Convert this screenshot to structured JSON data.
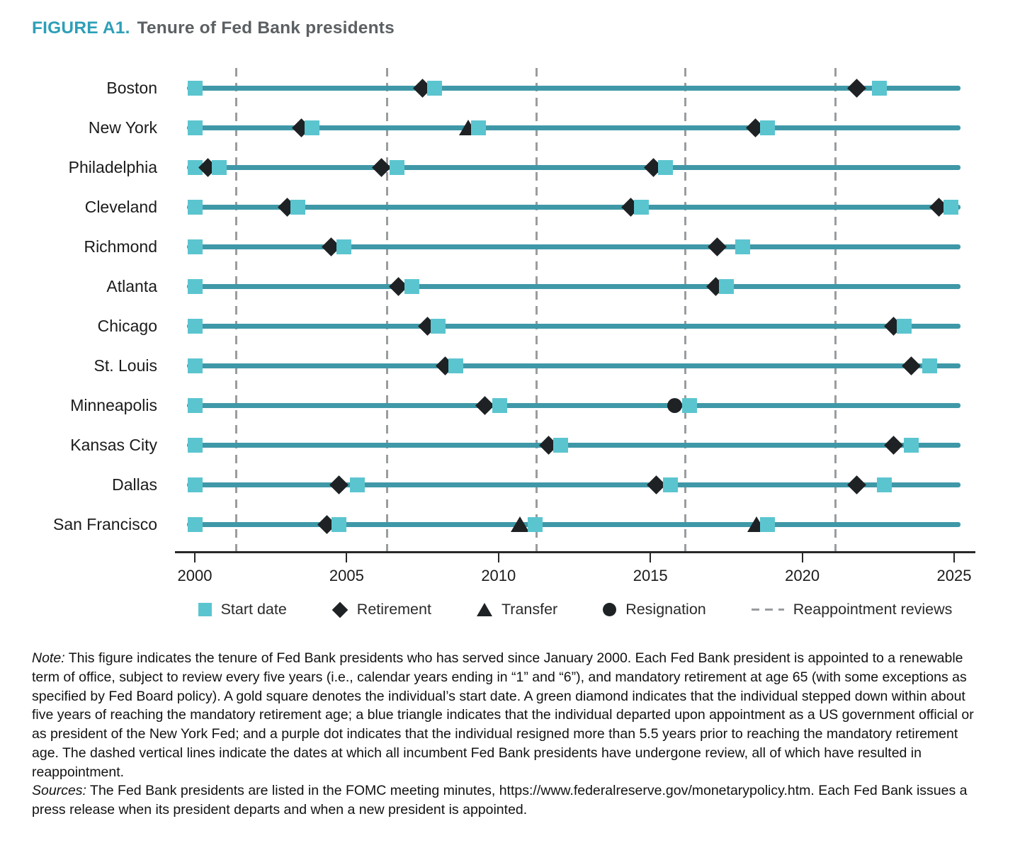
{
  "title": {
    "prefix": "FIGURE A1.",
    "text": "Tenure of Fed Bank presidents"
  },
  "colors": {
    "line": "#3f98a7",
    "marker_square": "#5bc5cf",
    "marker_dark": "#1e2224",
    "review_dash": "#9a9c9e",
    "axis": "#26282a",
    "title_accent": "#2d9fb8",
    "title_gray": "#5c6063"
  },
  "chart_data": {
    "type": "timeline",
    "title": "Tenure of Fed Bank presidents",
    "x_ticks": [
      2000,
      2005,
      2010,
      2015,
      2020,
      2025
    ],
    "x_range": [
      2000,
      2025.2
    ],
    "grid": "dashed-vertical-review-lines",
    "legend_position": "bottom",
    "reappointment_review_years": [
      2001.36,
      2006.33,
      2011.25,
      2016.15,
      2021.1
    ],
    "legend": [
      {
        "marker": "start",
        "label": "Start date"
      },
      {
        "marker": "retirement",
        "label": "Retirement"
      },
      {
        "marker": "transfer",
        "label": "Transfer"
      },
      {
        "marker": "resignation",
        "label": "Resignation"
      },
      {
        "marker": "review",
        "label": "Reappointment reviews"
      }
    ],
    "rows": [
      {
        "label": "Boston",
        "events": [
          {
            "type": "start",
            "year": 2000
          },
          {
            "type": "retirement",
            "year": 2007.5
          },
          {
            "type": "start",
            "year": 2007.9
          },
          {
            "type": "retirement",
            "year": 2021.8
          },
          {
            "type": "start",
            "year": 2022.55
          }
        ]
      },
      {
        "label": "New York",
        "events": [
          {
            "type": "start",
            "year": 2000
          },
          {
            "type": "retirement",
            "year": 2003.5
          },
          {
            "type": "start",
            "year": 2003.85
          },
          {
            "type": "transfer",
            "year": 2009.0
          },
          {
            "type": "start",
            "year": 2009.35
          },
          {
            "type": "retirement",
            "year": 2018.45
          },
          {
            "type": "start",
            "year": 2018.85
          }
        ]
      },
      {
        "label": "Philadelphia",
        "events": [
          {
            "type": "start",
            "year": 2000
          },
          {
            "type": "retirement",
            "year": 2000.42
          },
          {
            "type": "start",
            "year": 2000.8
          },
          {
            "type": "retirement",
            "year": 2006.15
          },
          {
            "type": "start",
            "year": 2006.65
          },
          {
            "type": "retirement",
            "year": 2015.1
          },
          {
            "type": "start",
            "year": 2015.5
          }
        ]
      },
      {
        "label": "Cleveland",
        "events": [
          {
            "type": "start",
            "year": 2000
          },
          {
            "type": "retirement",
            "year": 2003.05
          },
          {
            "type": "start",
            "year": 2003.4
          },
          {
            "type": "retirement",
            "year": 2014.35
          },
          {
            "type": "start",
            "year": 2014.7
          },
          {
            "type": "retirement",
            "year": 2024.5
          },
          {
            "type": "start",
            "year": 2024.9
          }
        ]
      },
      {
        "label": "Richmond",
        "events": [
          {
            "type": "start",
            "year": 2000
          },
          {
            "type": "retirement",
            "year": 2004.5
          },
          {
            "type": "start",
            "year": 2004.9
          },
          {
            "type": "retirement",
            "year": 2017.2
          },
          {
            "type": "start",
            "year": 2018.05
          }
        ]
      },
      {
        "label": "Atlanta",
        "events": [
          {
            "type": "start",
            "year": 2000
          },
          {
            "type": "retirement",
            "year": 2006.7
          },
          {
            "type": "start",
            "year": 2007.15
          },
          {
            "type": "retirement",
            "year": 2017.15
          },
          {
            "type": "start",
            "year": 2017.5
          }
        ]
      },
      {
        "label": "Chicago",
        "events": [
          {
            "type": "start",
            "year": 2000
          },
          {
            "type": "retirement",
            "year": 2007.65
          },
          {
            "type": "start",
            "year": 2008.0
          },
          {
            "type": "retirement",
            "year": 2023.0
          },
          {
            "type": "start",
            "year": 2023.35
          }
        ]
      },
      {
        "label": "St. Louis",
        "events": [
          {
            "type": "start",
            "year": 2000
          },
          {
            "type": "retirement",
            "year": 2008.25
          },
          {
            "type": "start",
            "year": 2008.6
          },
          {
            "type": "retirement",
            "year": 2023.6
          },
          {
            "type": "start",
            "year": 2024.2
          }
        ]
      },
      {
        "label": "Minneapolis",
        "events": [
          {
            "type": "start",
            "year": 2000
          },
          {
            "type": "retirement",
            "year": 2009.55
          },
          {
            "type": "start",
            "year": 2010.05
          },
          {
            "type": "resignation",
            "year": 2015.8
          },
          {
            "type": "start",
            "year": 2016.3
          }
        ]
      },
      {
        "label": "Kansas City",
        "events": [
          {
            "type": "start",
            "year": 2000
          },
          {
            "type": "retirement",
            "year": 2011.65
          },
          {
            "type": "start",
            "year": 2012.05
          },
          {
            "type": "retirement",
            "year": 2023.0
          },
          {
            "type": "start",
            "year": 2023.6
          }
        ]
      },
      {
        "label": "Dallas",
        "events": [
          {
            "type": "start",
            "year": 2000
          },
          {
            "type": "retirement",
            "year": 2004.75
          },
          {
            "type": "start",
            "year": 2005.35
          },
          {
            "type": "retirement",
            "year": 2015.2
          },
          {
            "type": "start",
            "year": 2015.65
          },
          {
            "type": "retirement",
            "year": 2021.8
          },
          {
            "type": "start",
            "year": 2022.7
          }
        ]
      },
      {
        "label": "San Francisco",
        "events": [
          {
            "type": "start",
            "year": 2000
          },
          {
            "type": "retirement",
            "year": 2004.35
          },
          {
            "type": "start",
            "year": 2004.75
          },
          {
            "type": "transfer",
            "year": 2010.7
          },
          {
            "type": "start",
            "year": 2011.2
          },
          {
            "type": "transfer",
            "year": 2018.5
          },
          {
            "type": "start",
            "year": 2018.85
          }
        ]
      }
    ]
  },
  "note": {
    "label": "Note:",
    "text": "This figure indicates the tenure of Fed Bank presidents who has served since January 2000. Each Fed Bank president is appointed to a renewable term of office, subject to review every five years (i.e., calendar years ending in “1” and “6”), and mandatory retirement at age 65 (with some exceptions as specified by Fed Board policy). A gold square denotes the individual’s start date. A green diamond indicates that the individual stepped down within about five years of reaching the mandatory retirement age; a blue triangle indicates that the individual departed upon appointment as a US government official or as president of the New York Fed; and a purple dot indicates that the individual resigned more than 5.5 years prior to reaching the mandatory retirement age. The dashed vertical lines indicate the dates at which all incumbent Fed Bank presidents have undergone review, all of which have resulted in reappointment."
  },
  "sources": {
    "label": "Sources:",
    "text": "The Fed Bank presidents are listed in the FOMC meeting minutes, https://www.federalreserve.gov/monetarypolicy.htm. Each Fed Bank issues a press release when its president departs and when a new president is appointed."
  }
}
